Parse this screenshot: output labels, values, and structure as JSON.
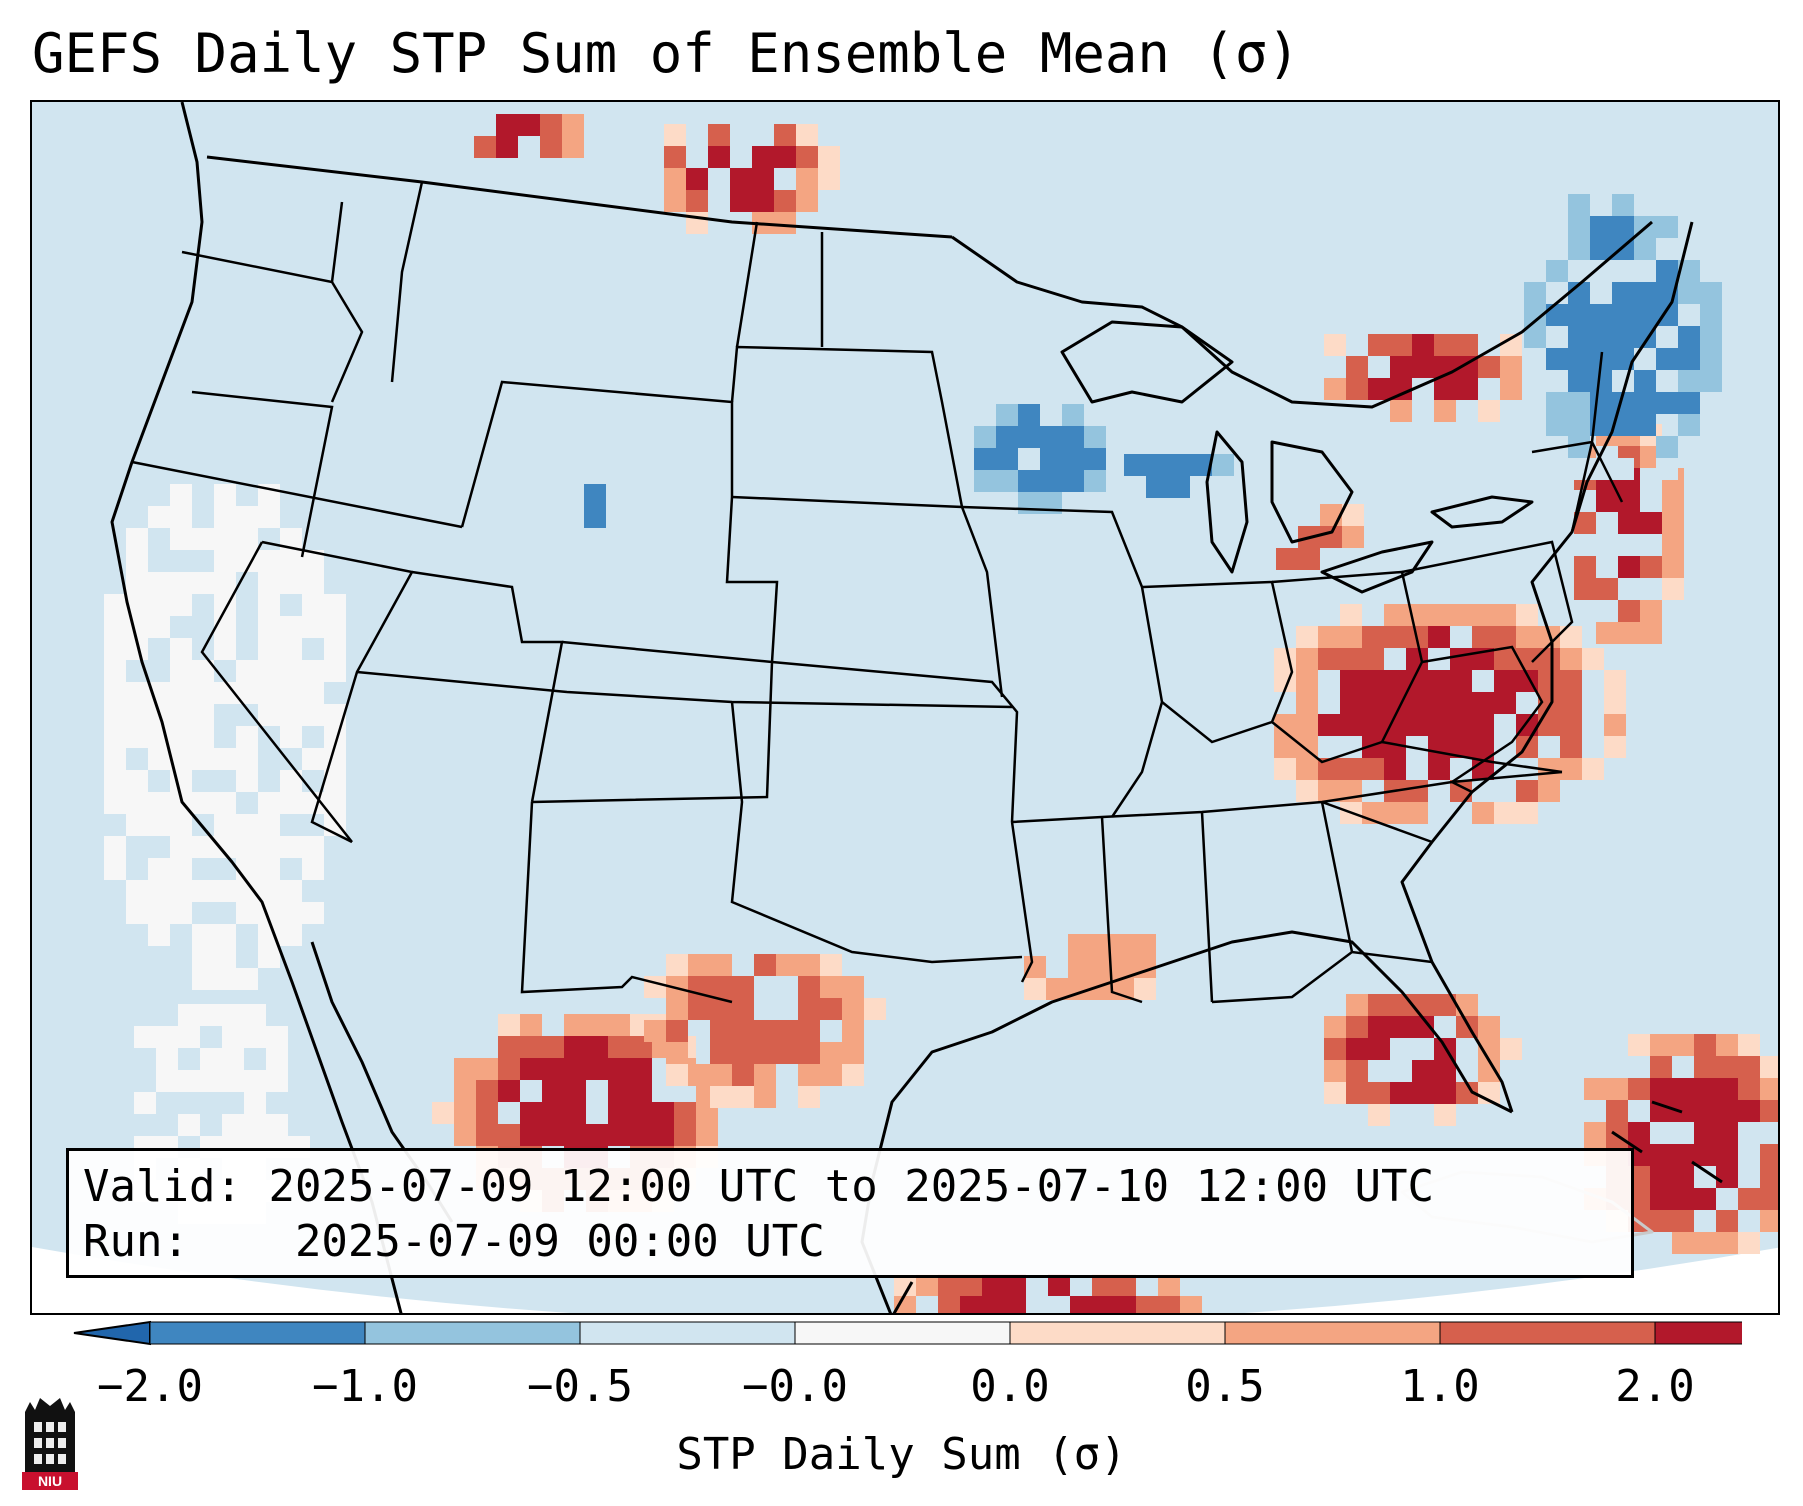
{
  "title": "GEFS Daily STP Sum of Ensemble Mean (σ)",
  "info": {
    "valid_label": "Valid:",
    "valid_text": "2025-07-09 12:00 UTC to 2025-07-10 12:00 UTC",
    "run_label": "Run:",
    "run_text": "2025-07-09 00:00 UTC"
  },
  "colorbar": {
    "label": "STP Daily Sum (σ)",
    "ticks": [
      "−2.0",
      "−1.0",
      "−0.5",
      "−0.0",
      "0.0",
      "0.5",
      "1.0",
      "2.0"
    ],
    "colors": [
      "#3f86c0",
      "#94c4de",
      "#d1e5f0",
      "#f7f7f7",
      "#fddbc7",
      "#f4a582",
      "#d6604d",
      "#b2182b"
    ],
    "under_color": "#2166ac",
    "over_color": "#a50f26"
  },
  "map": {
    "background_color": "#d1e5f0",
    "border_color": "#000000"
  },
  "logo": {
    "text": "NIU",
    "color": "#c8102e"
  }
}
